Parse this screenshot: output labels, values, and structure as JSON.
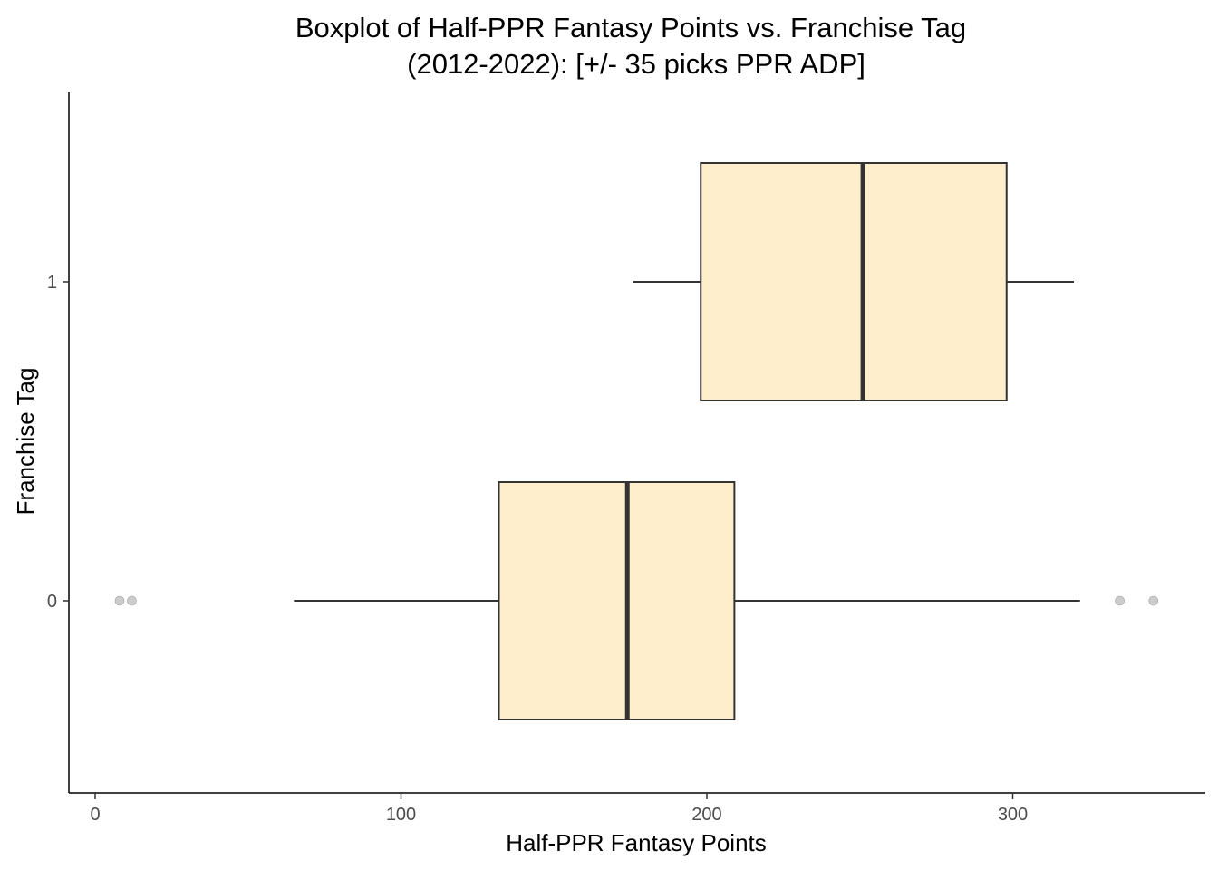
{
  "chart_data": {
    "type": "boxplot",
    "orientation": "horizontal",
    "title_line1": "Boxplot of Half-PPR Fantasy Points vs. Franchise Tag",
    "title_line2": "(2012-2022): [+/- 35 picks PPR ADP]",
    "xlabel": "Half-PPR Fantasy Points",
    "ylabel": "Franchise Tag",
    "xlim": [
      -9,
      362
    ],
    "x_ticks": [
      0,
      100,
      200,
      300
    ],
    "x_tick_labels": [
      "0",
      "100",
      "200",
      "300"
    ],
    "categories": [
      "0",
      "1"
    ],
    "boxes": [
      {
        "category": "0",
        "whisker_low": 65,
        "q1": 132,
        "median": 174,
        "q3": 209,
        "whisker_high": 322,
        "outliers": [
          8,
          12,
          335,
          346
        ]
      },
      {
        "category": "1",
        "whisker_low": 176,
        "q1": 198,
        "median": 251,
        "q3": 298,
        "whisker_high": 320,
        "outliers": []
      }
    ],
    "box_fill": "#FFEECC",
    "box_stroke": "#333333",
    "outlier_color": "#BFBFBF",
    "grid": false,
    "legend": "none"
  }
}
